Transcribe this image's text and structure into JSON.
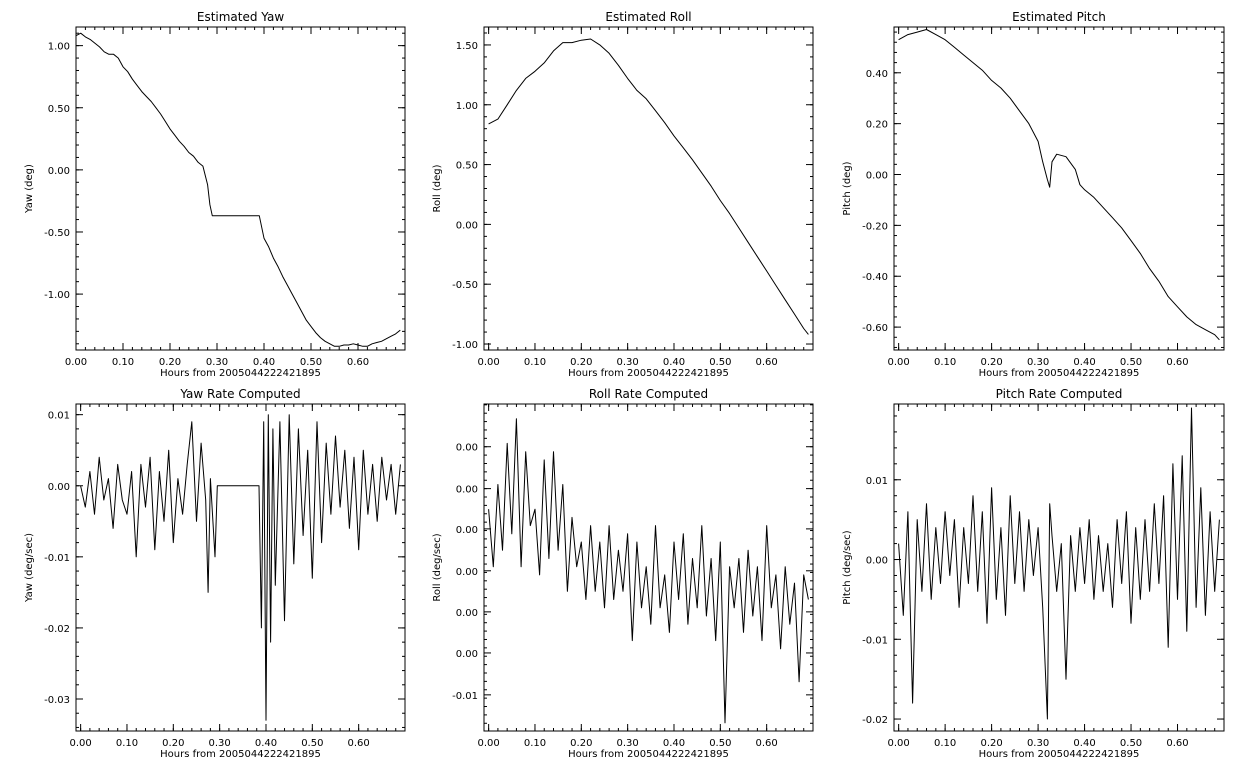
{
  "chart_data": [
    {
      "type": "line",
      "title": "Estimated Yaw",
      "xlabel": "Hours from 2005044222421895",
      "ylabel": "Yaw (deg)",
      "xlim": [
        0.0,
        0.7
      ],
      "ylim": [
        -1.45,
        1.15
      ],
      "xticks": [
        "0.00",
        "0.10",
        "0.20",
        "0.30",
        "0.40",
        "0.50",
        "0.60"
      ],
      "xtick_values": [
        0.0,
        0.1,
        0.2,
        0.3,
        0.4,
        0.5,
        0.6
      ],
      "yticks": [
        "1.00",
        "0.50",
        "0.00",
        "-0.50",
        "-1.00"
      ],
      "ytick_values": [
        1.0,
        0.5,
        0.0,
        -0.5,
        -1.0
      ],
      "series": [
        {
          "x": [
            0.0,
            0.01,
            0.02,
            0.03,
            0.04,
            0.05,
            0.06,
            0.07,
            0.08,
            0.09,
            0.1,
            0.11,
            0.12,
            0.13,
            0.14,
            0.15,
            0.16,
            0.17,
            0.18,
            0.19,
            0.2,
            0.21,
            0.22,
            0.23,
            0.24,
            0.25,
            0.26,
            0.27,
            0.28,
            0.285,
            0.29,
            0.3,
            0.35,
            0.39,
            0.4,
            0.41,
            0.42,
            0.43,
            0.44,
            0.45,
            0.46,
            0.47,
            0.48,
            0.49,
            0.5,
            0.51,
            0.52,
            0.53,
            0.54,
            0.55,
            0.56,
            0.57,
            0.58,
            0.59,
            0.6,
            0.61,
            0.62,
            0.63,
            0.64,
            0.65,
            0.66,
            0.67,
            0.68,
            0.69
          ],
          "y": [
            1.08,
            1.1,
            1.07,
            1.05,
            1.02,
            0.99,
            0.95,
            0.93,
            0.93,
            0.9,
            0.83,
            0.79,
            0.73,
            0.68,
            0.63,
            0.59,
            0.55,
            0.5,
            0.45,
            0.39,
            0.33,
            0.28,
            0.23,
            0.19,
            0.14,
            0.11,
            0.06,
            0.03,
            -0.12,
            -0.28,
            -0.37,
            -0.37,
            -0.37,
            -0.37,
            -0.55,
            -0.62,
            -0.71,
            -0.78,
            -0.86,
            -0.93,
            -1.0,
            -1.07,
            -1.14,
            -1.21,
            -1.26,
            -1.31,
            -1.35,
            -1.38,
            -1.4,
            -1.42,
            -1.42,
            -1.41,
            -1.41,
            -1.4,
            -1.41,
            -1.42,
            -1.42,
            -1.4,
            -1.39,
            -1.38,
            -1.36,
            -1.34,
            -1.32,
            -1.29
          ]
        }
      ]
    },
    {
      "type": "line",
      "title": "Estimated Roll",
      "xlabel": "Hours from 2005044222421895",
      "ylabel": "Roll (deg)",
      "xlim": [
        -0.01,
        0.7
      ],
      "ylim": [
        -1.05,
        1.65
      ],
      "xticks": [
        "0.00",
        "0.10",
        "0.20",
        "0.30",
        "0.40",
        "0.50",
        "0.60"
      ],
      "xtick_values": [
        0.0,
        0.1,
        0.2,
        0.3,
        0.4,
        0.5,
        0.6
      ],
      "yticks": [
        "1.50",
        "1.00",
        "0.50",
        "0.00",
        "-0.50",
        "-1.00"
      ],
      "ytick_values": [
        1.5,
        1.0,
        0.5,
        0.0,
        -0.5,
        -1.0
      ],
      "series": [
        {
          "x": [
            0.0,
            0.02,
            0.04,
            0.06,
            0.08,
            0.1,
            0.12,
            0.14,
            0.16,
            0.18,
            0.2,
            0.22,
            0.24,
            0.26,
            0.28,
            0.3,
            0.32,
            0.34,
            0.36,
            0.38,
            0.4,
            0.42,
            0.44,
            0.46,
            0.48,
            0.5,
            0.52,
            0.54,
            0.56,
            0.58,
            0.6,
            0.62,
            0.64,
            0.66,
            0.68,
            0.69
          ],
          "y": [
            0.84,
            0.88,
            1.0,
            1.12,
            1.22,
            1.28,
            1.35,
            1.45,
            1.52,
            1.52,
            1.54,
            1.55,
            1.5,
            1.43,
            1.33,
            1.22,
            1.12,
            1.05,
            0.95,
            0.85,
            0.74,
            0.64,
            0.54,
            0.43,
            0.32,
            0.2,
            0.09,
            -0.03,
            -0.15,
            -0.27,
            -0.39,
            -0.51,
            -0.63,
            -0.75,
            -0.87,
            -0.92
          ]
        }
      ]
    },
    {
      "type": "line",
      "title": "Estimated Pitch",
      "xlabel": "Hours from 2005044222421895",
      "ylabel": "Pitch (deg)",
      "xlim": [
        -0.01,
        0.7
      ],
      "ylim": [
        -0.69,
        0.58
      ],
      "xticks": [
        "0.00",
        "0.10",
        "0.20",
        "0.30",
        "0.40",
        "0.50",
        "0.60"
      ],
      "xtick_values": [
        0.0,
        0.1,
        0.2,
        0.3,
        0.4,
        0.5,
        0.6
      ],
      "yticks": [
        "0.40",
        "0.20",
        "0.00",
        "-0.20",
        "-0.40",
        "-0.60"
      ],
      "ytick_values": [
        0.4,
        0.2,
        0.0,
        -0.2,
        -0.4,
        -0.6
      ],
      "series": [
        {
          "x": [
            0.0,
            0.02,
            0.04,
            0.06,
            0.08,
            0.1,
            0.12,
            0.14,
            0.16,
            0.18,
            0.2,
            0.22,
            0.24,
            0.26,
            0.28,
            0.3,
            0.31,
            0.32,
            0.325,
            0.33,
            0.34,
            0.36,
            0.38,
            0.39,
            0.4,
            0.42,
            0.44,
            0.46,
            0.48,
            0.5,
            0.52,
            0.54,
            0.56,
            0.58,
            0.6,
            0.62,
            0.64,
            0.66,
            0.68,
            0.69
          ],
          "y": [
            0.53,
            0.55,
            0.56,
            0.57,
            0.55,
            0.53,
            0.5,
            0.47,
            0.44,
            0.41,
            0.37,
            0.34,
            0.3,
            0.25,
            0.2,
            0.13,
            0.05,
            -0.02,
            -0.05,
            0.05,
            0.08,
            0.07,
            0.02,
            -0.04,
            -0.06,
            -0.09,
            -0.13,
            -0.17,
            -0.21,
            -0.26,
            -0.31,
            -0.37,
            -0.42,
            -0.48,
            -0.52,
            -0.56,
            -0.59,
            -0.61,
            -0.63,
            -0.65
          ]
        }
      ]
    },
    {
      "type": "line",
      "title": "Yaw Rate Computed",
      "xlabel": "Hours from 2005044222421895",
      "ylabel": "Yaw (deg/sec)",
      "xlim": [
        -0.01,
        0.7
      ],
      "ylim": [
        -0.0345,
        0.0115
      ],
      "xticks": [
        "0.00",
        "0.10",
        "0.20",
        "0.30",
        "0.40",
        "0.50",
        "0.60"
      ],
      "xtick_values": [
        0.0,
        0.1,
        0.2,
        0.3,
        0.4,
        0.5,
        0.6
      ],
      "yticks": [
        "0.01",
        "0.00",
        "-0.01",
        "-0.02",
        "-0.03"
      ],
      "ytick_values": [
        0.01,
        0.0,
        -0.01,
        -0.02,
        -0.03
      ],
      "series": [
        {
          "x": [
            0.0,
            0.01,
            0.02,
            0.03,
            0.04,
            0.05,
            0.06,
            0.07,
            0.08,
            0.09,
            0.1,
            0.11,
            0.12,
            0.13,
            0.14,
            0.15,
            0.16,
            0.17,
            0.18,
            0.19,
            0.2,
            0.21,
            0.22,
            0.23,
            0.24,
            0.25,
            0.26,
            0.27,
            0.275,
            0.28,
            0.29,
            0.295,
            0.3,
            0.385,
            0.39,
            0.395,
            0.4,
            0.405,
            0.41,
            0.415,
            0.42,
            0.43,
            0.44,
            0.45,
            0.46,
            0.47,
            0.48,
            0.49,
            0.5,
            0.51,
            0.52,
            0.53,
            0.54,
            0.55,
            0.56,
            0.57,
            0.58,
            0.59,
            0.6,
            0.61,
            0.62,
            0.63,
            0.64,
            0.65,
            0.66,
            0.67,
            0.68,
            0.69
          ],
          "y": [
            0.0,
            -0.003,
            0.002,
            -0.004,
            0.004,
            -0.002,
            0.001,
            -0.006,
            0.003,
            -0.002,
            -0.004,
            0.002,
            -0.01,
            0.003,
            -0.003,
            0.004,
            -0.009,
            0.002,
            -0.005,
            0.005,
            -0.008,
            0.001,
            -0.004,
            0.003,
            0.009,
            -0.005,
            0.006,
            -0.002,
            -0.015,
            0.001,
            -0.01,
            0.0,
            0.0,
            0.0,
            -0.02,
            0.009,
            -0.033,
            0.01,
            -0.022,
            0.008,
            -0.014,
            0.009,
            -0.019,
            0.01,
            -0.011,
            0.008,
            -0.007,
            0.005,
            -0.013,
            0.009,
            -0.008,
            0.006,
            -0.004,
            0.007,
            -0.003,
            0.005,
            -0.006,
            0.004,
            -0.009,
            0.005,
            -0.004,
            0.003,
            -0.005,
            0.004,
            -0.002,
            0.003,
            -0.004,
            0.003
          ]
        }
      ]
    },
    {
      "type": "line",
      "title": "Roll Rate Computed",
      "xlabel": "Hours from 2005044222421895",
      "ylabel": "Roll (deg/sec)",
      "xlim": [
        -0.01,
        0.7
      ],
      "ylim": [
        -0.014,
        0.0258
      ],
      "xticks": [
        "0.00",
        "0.10",
        "0.20",
        "0.30",
        "0.40",
        "0.50",
        "0.60"
      ],
      "xtick_values": [
        0.0,
        0.1,
        0.2,
        0.3,
        0.4,
        0.5,
        0.6
      ],
      "yticks": [
        "0.00",
        "0.00",
        "0.00",
        "0.00",
        "0.00",
        "0.00",
        "-0.01"
      ],
      "ytick_values": [
        0.0206,
        0.0155,
        0.0106,
        0.0055,
        0.0005,
        -0.0045,
        -0.0096
      ],
      "series": [
        {
          "x": [
            0.0,
            0.01,
            0.02,
            0.03,
            0.04,
            0.05,
            0.06,
            0.07,
            0.08,
            0.09,
            0.1,
            0.11,
            0.12,
            0.13,
            0.14,
            0.15,
            0.16,
            0.17,
            0.18,
            0.19,
            0.2,
            0.21,
            0.22,
            0.23,
            0.24,
            0.25,
            0.26,
            0.27,
            0.28,
            0.29,
            0.3,
            0.31,
            0.32,
            0.33,
            0.34,
            0.35,
            0.36,
            0.37,
            0.38,
            0.39,
            0.4,
            0.41,
            0.42,
            0.43,
            0.44,
            0.45,
            0.46,
            0.47,
            0.48,
            0.49,
            0.5,
            0.51,
            0.52,
            0.53,
            0.54,
            0.55,
            0.56,
            0.57,
            0.58,
            0.59,
            0.6,
            0.61,
            0.62,
            0.63,
            0.64,
            0.65,
            0.66,
            0.67,
            0.68,
            0.69
          ],
          "y": [
            0.013,
            0.006,
            0.016,
            0.008,
            0.021,
            0.01,
            0.024,
            0.006,
            0.02,
            0.011,
            0.013,
            0.005,
            0.019,
            0.007,
            0.02,
            0.008,
            0.016,
            0.003,
            0.012,
            0.006,
            0.009,
            0.002,
            0.011,
            0.003,
            0.009,
            0.001,
            0.011,
            0.002,
            0.008,
            0.003,
            0.01,
            -0.003,
            0.009,
            0.001,
            0.006,
            -0.001,
            0.011,
            0.001,
            0.005,
            -0.002,
            0.009,
            0.002,
            0.01,
            -0.001,
            0.007,
            0.001,
            0.011,
            0.0,
            0.007,
            -0.003,
            0.009,
            -0.013,
            0.006,
            0.001,
            0.007,
            -0.002,
            0.008,
            0.0,
            0.006,
            -0.003,
            0.011,
            0.001,
            0.005,
            -0.004,
            0.006,
            -0.001,
            0.004,
            -0.008,
            0.005,
            0.002
          ]
        }
      ]
    },
    {
      "type": "line",
      "title": "Pitch Rate Computed",
      "xlabel": "Hours from 2005044222421895",
      "ylabel": "Pitch (deg/sec)",
      "xlim": [
        -0.01,
        0.7
      ],
      "ylim": [
        -0.0215,
        0.0195
      ],
      "xticks": [
        "0.00",
        "0.10",
        "0.20",
        "0.30",
        "0.40",
        "0.50",
        "0.60"
      ],
      "xtick_values": [
        0.0,
        0.1,
        0.2,
        0.3,
        0.4,
        0.5,
        0.6
      ],
      "yticks": [
        "0.01",
        "0.00",
        "-0.01",
        "-0.02"
      ],
      "ytick_values": [
        0.01,
        0.0,
        -0.01,
        -0.02
      ],
      "series": [
        {
          "x": [
            0.0,
            0.01,
            0.02,
            0.03,
            0.04,
            0.05,
            0.06,
            0.07,
            0.08,
            0.09,
            0.1,
            0.11,
            0.12,
            0.13,
            0.14,
            0.15,
            0.16,
            0.17,
            0.18,
            0.19,
            0.2,
            0.21,
            0.22,
            0.23,
            0.24,
            0.25,
            0.26,
            0.27,
            0.28,
            0.29,
            0.3,
            0.31,
            0.32,
            0.325,
            0.33,
            0.34,
            0.35,
            0.36,
            0.37,
            0.38,
            0.39,
            0.4,
            0.41,
            0.42,
            0.43,
            0.44,
            0.45,
            0.46,
            0.47,
            0.48,
            0.49,
            0.5,
            0.51,
            0.52,
            0.53,
            0.54,
            0.55,
            0.56,
            0.57,
            0.58,
            0.59,
            0.6,
            0.61,
            0.62,
            0.63,
            0.64,
            0.65,
            0.66,
            0.67,
            0.68,
            0.69
          ],
          "y": [
            0.002,
            -0.007,
            0.006,
            -0.018,
            0.005,
            -0.004,
            0.007,
            -0.005,
            0.004,
            -0.003,
            0.006,
            -0.002,
            0.005,
            -0.006,
            0.004,
            -0.003,
            0.008,
            -0.004,
            0.006,
            -0.008,
            0.009,
            -0.005,
            0.004,
            -0.007,
            0.008,
            -0.003,
            0.006,
            -0.004,
            0.005,
            -0.002,
            0.004,
            -0.006,
            -0.02,
            0.007,
            0.003,
            -0.004,
            0.002,
            -0.015,
            0.003,
            -0.004,
            0.004,
            -0.003,
            0.005,
            -0.005,
            0.003,
            -0.004,
            0.002,
            -0.006,
            0.005,
            -0.003,
            0.006,
            -0.008,
            0.004,
            -0.005,
            0.005,
            -0.004,
            0.007,
            -0.003,
            0.008,
            -0.011,
            0.012,
            -0.005,
            0.013,
            -0.009,
            0.019,
            -0.006,
            0.009,
            -0.007,
            0.006,
            -0.004,
            0.005
          ]
        }
      ]
    }
  ]
}
